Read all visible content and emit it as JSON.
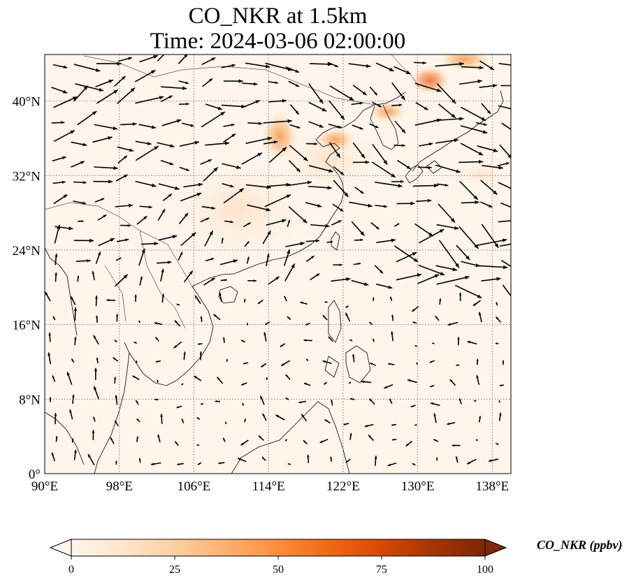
{
  "title": {
    "line1": "CO_NKR at 1.5km",
    "line2": "Time: 2024-03-06 02:00:00"
  },
  "axes": {
    "lon_ticks": [
      "90°E",
      "98°E",
      "106°E",
      "114°E",
      "122°E",
      "130°E",
      "138°E"
    ],
    "lat_ticks": [
      "0°",
      "8°N",
      "16°N",
      "24°N",
      "32°N",
      "40°N"
    ],
    "lon_range": [
      90,
      140
    ],
    "lat_range": [
      0,
      45
    ],
    "gridlines": true
  },
  "colorbar": {
    "label": "CO_NKR (ppbv)",
    "ticks": [
      "0",
      "25",
      "50",
      "75",
      "100"
    ],
    "range": [
      0,
      100
    ],
    "extend": "both",
    "colormap": [
      "#fff5eb",
      "#fee6ce",
      "#fdd0a2",
      "#fdae6b",
      "#fd8d3c",
      "#f16913",
      "#d94801",
      "#a63603",
      "#7f2704"
    ]
  },
  "colors": {
    "background_field": "#fff5eb",
    "coastline": "#000000",
    "arrow": "#000000",
    "grid": "#777777"
  }
}
